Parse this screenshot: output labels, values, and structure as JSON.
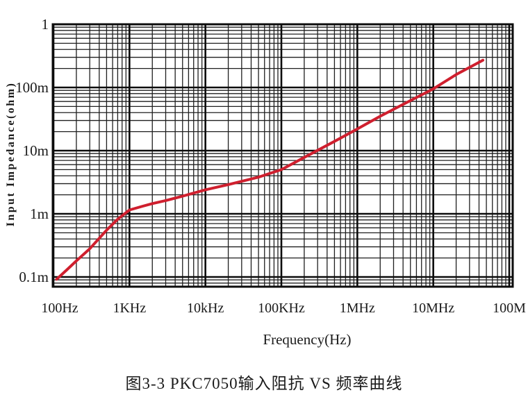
{
  "figure": {
    "caption": "图3-3 PKC7050输入阻抗 VS 频率曲线"
  },
  "chart_data": {
    "type": "line",
    "title": "",
    "xlabel": "Frequency(Hz)",
    "ylabel": "Input Impedance(ohm)",
    "x_scale": "log",
    "y_scale": "log",
    "xlim": [
      100,
      100000000
    ],
    "ylim": [
      0.0001,
      1
    ],
    "grid": "on (log-log major + minor gridlines, black)",
    "legend": "none",
    "x_tick_values": [
      100,
      1000,
      10000,
      100000,
      1000000,
      10000000,
      100000000
    ],
    "x_tick_labels": [
      "100Hz",
      "1KHz",
      "10kHz",
      "100KHz",
      "1MHz",
      "10MHz",
      "100M"
    ],
    "y_tick_values": [
      1,
      0.1,
      0.01,
      0.001,
      0.0001
    ],
    "y_tick_labels": [
      "1",
      "100m",
      "10m",
      "1m",
      "0.1m"
    ],
    "series": [
      {
        "name": "PKC7050 input impedance",
        "color": "#cf1f2e",
        "points": [
          [
            110,
            9.2e-05
          ],
          [
            150,
            0.00013
          ],
          [
            200,
            0.00018
          ],
          [
            300,
            0.00028
          ],
          [
            500,
            0.00055
          ],
          [
            700,
            0.00082
          ],
          [
            1000,
            0.00115
          ],
          [
            1500,
            0.00132
          ],
          [
            2000,
            0.00145
          ],
          [
            3000,
            0.00162
          ],
          [
            5000,
            0.0019
          ],
          [
            10000,
            0.0024
          ],
          [
            20000,
            0.0029
          ],
          [
            50000,
            0.0038
          ],
          [
            100000,
            0.005
          ],
          [
            200000,
            0.0078
          ],
          [
            500000,
            0.014
          ],
          [
            1000000,
            0.022
          ],
          [
            2000000,
            0.035
          ],
          [
            5000000,
            0.062
          ],
          [
            10000000,
            0.095
          ],
          [
            20000000,
            0.16
          ],
          [
            45000000,
            0.27
          ]
        ]
      }
    ]
  }
}
